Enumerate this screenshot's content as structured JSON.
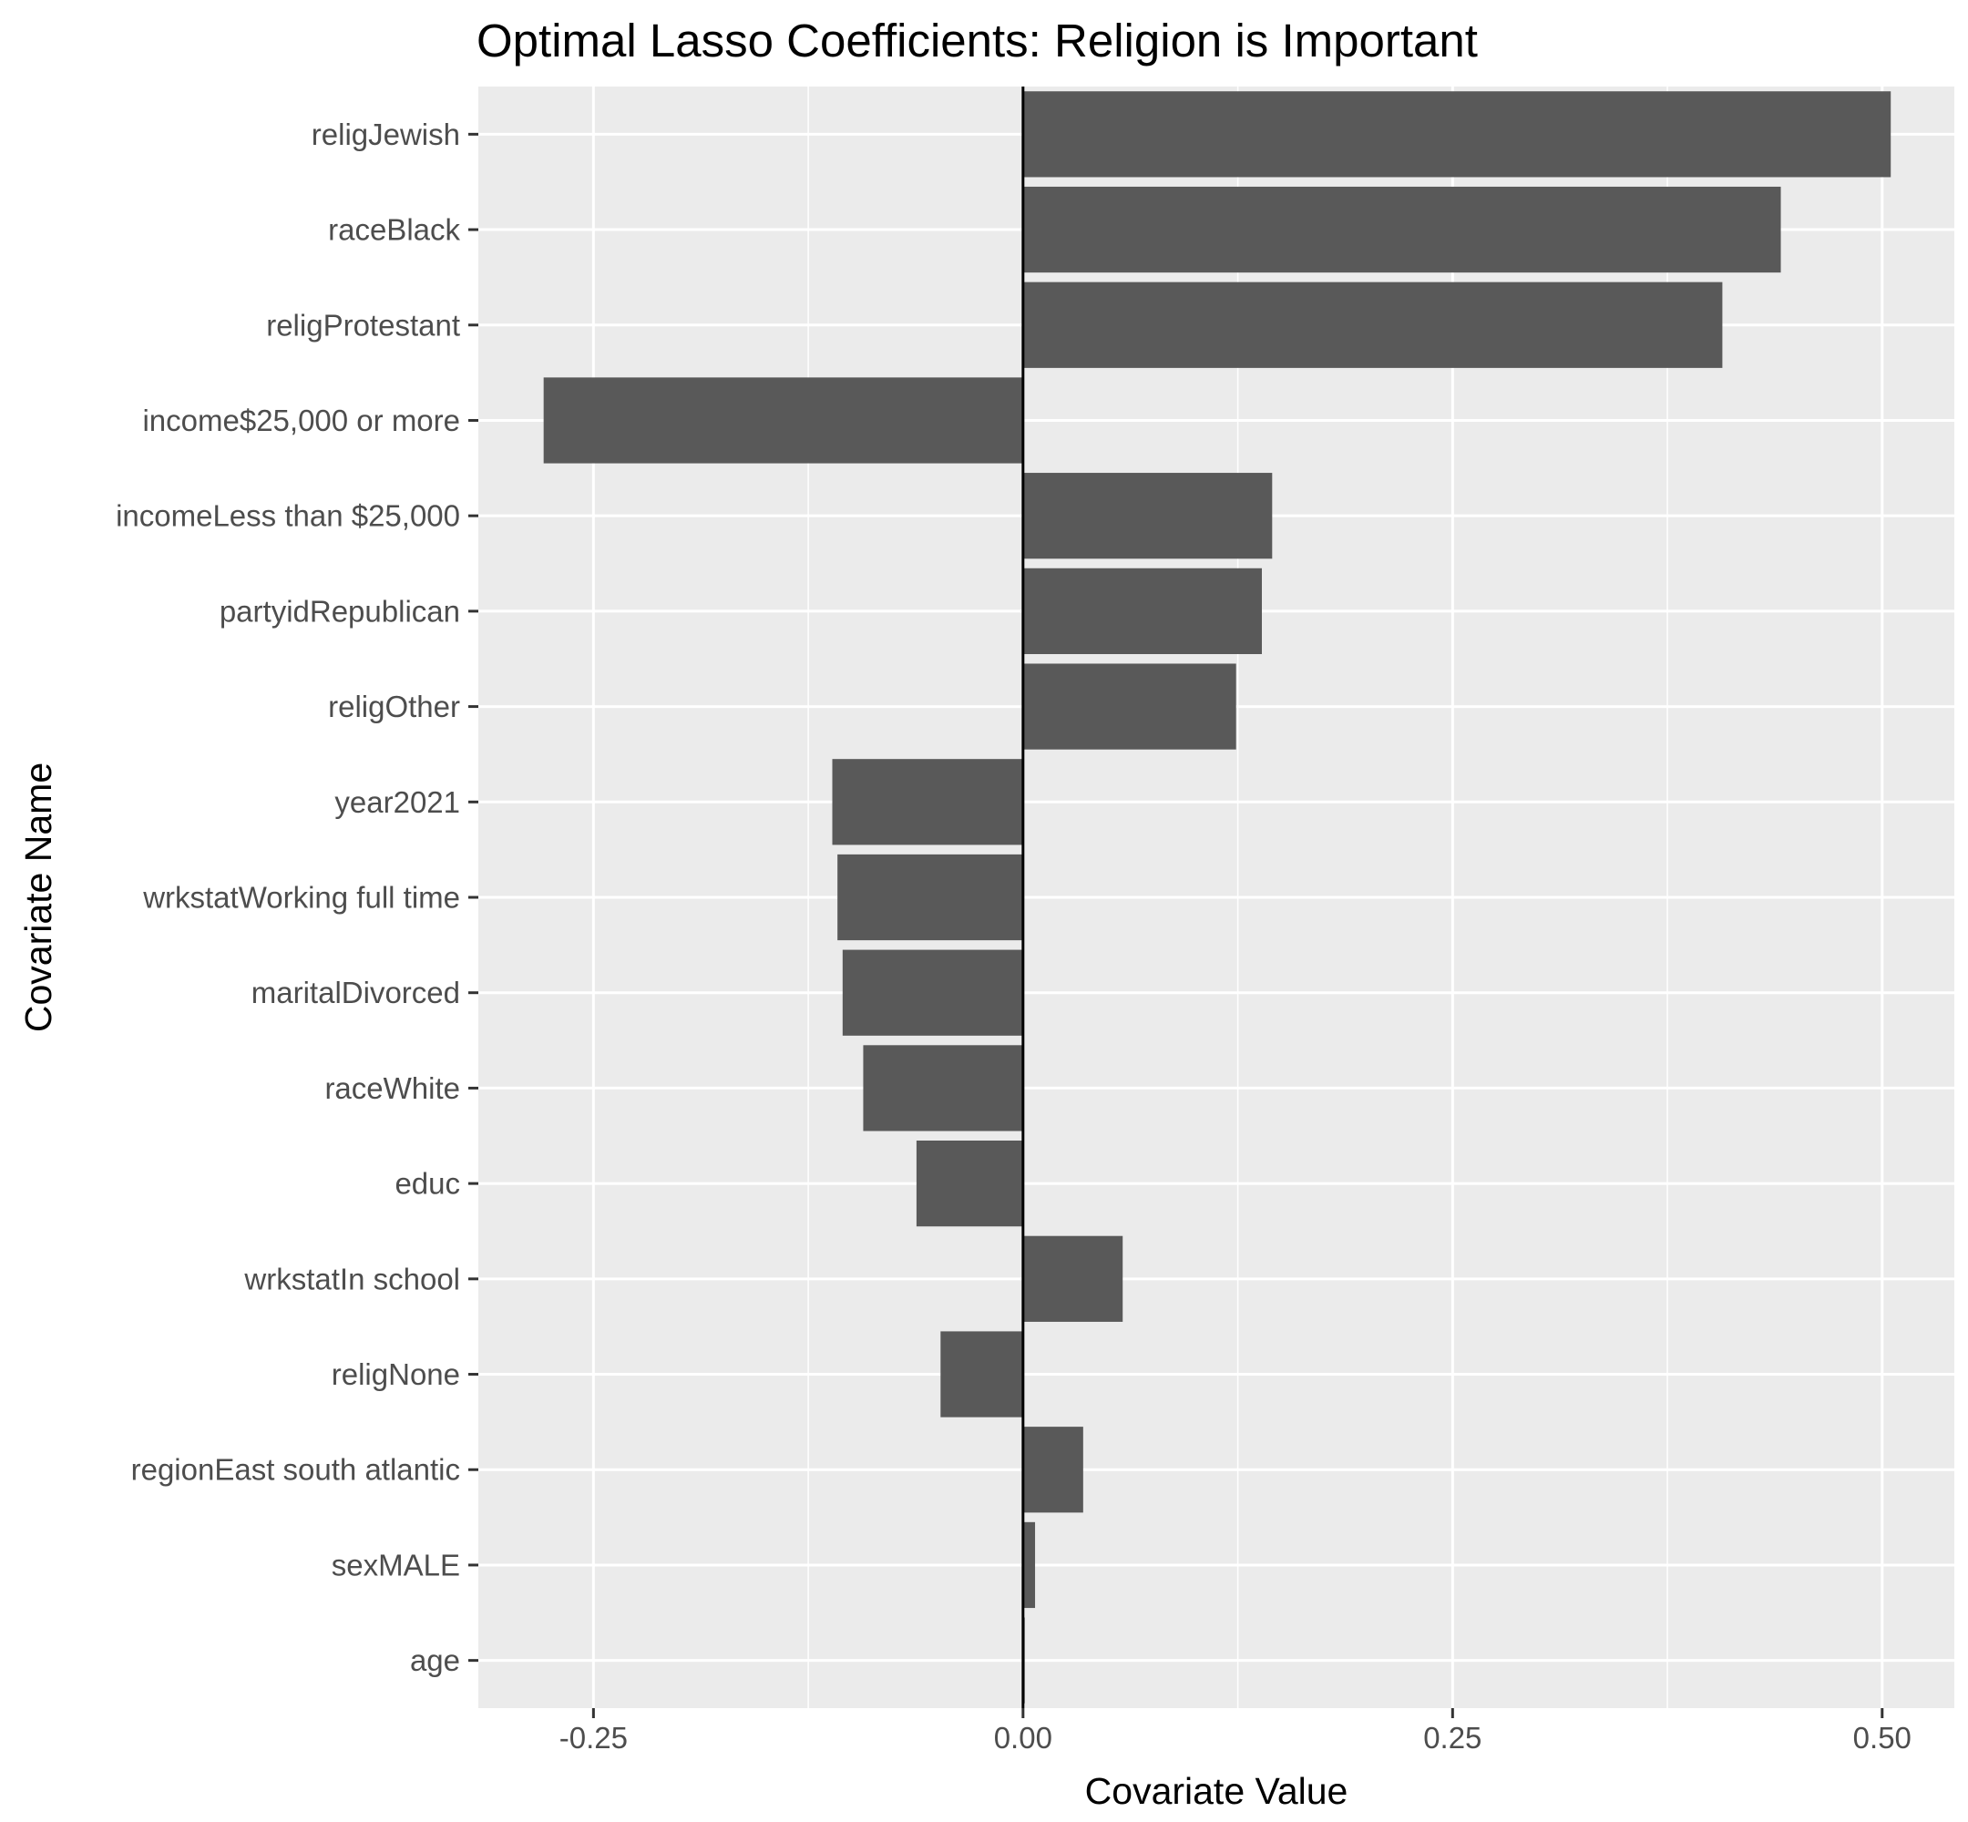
{
  "chart_data": {
    "type": "bar",
    "orientation": "horizontal",
    "title": "Optimal Lasso Coefficients: Religion is Important",
    "xlabel": "Covariate Value",
    "ylabel": "Covariate Name",
    "xlim": [
      -0.317,
      0.542
    ],
    "x_ticks": [
      -0.25,
      0.0,
      0.25,
      0.5
    ],
    "x_tick_labels": [
      "-0.25",
      "0.00",
      "0.25",
      "0.50"
    ],
    "grid": true,
    "legend": "none",
    "bar_color": "#595959",
    "panel_color": "#ebebeb",
    "categories": [
      "religJewish",
      "raceBlack",
      "religProtestant",
      "income$25,000 or more",
      "incomeLess than $25,000",
      "partyidRepublican",
      "religOther",
      "year2021",
      "wrkstatWorking full time",
      "maritalDivorced",
      "raceWhite",
      "educ",
      "wrkstatIn school",
      "religNone",
      "regionEast south atlantic",
      "sexMALE",
      "age"
    ],
    "values": [
      0.505,
      0.441,
      0.407,
      -0.279,
      0.145,
      0.139,
      0.124,
      -0.111,
      -0.108,
      -0.105,
      -0.093,
      -0.062,
      0.058,
      -0.048,
      0.035,
      0.007,
      0.001
    ]
  }
}
